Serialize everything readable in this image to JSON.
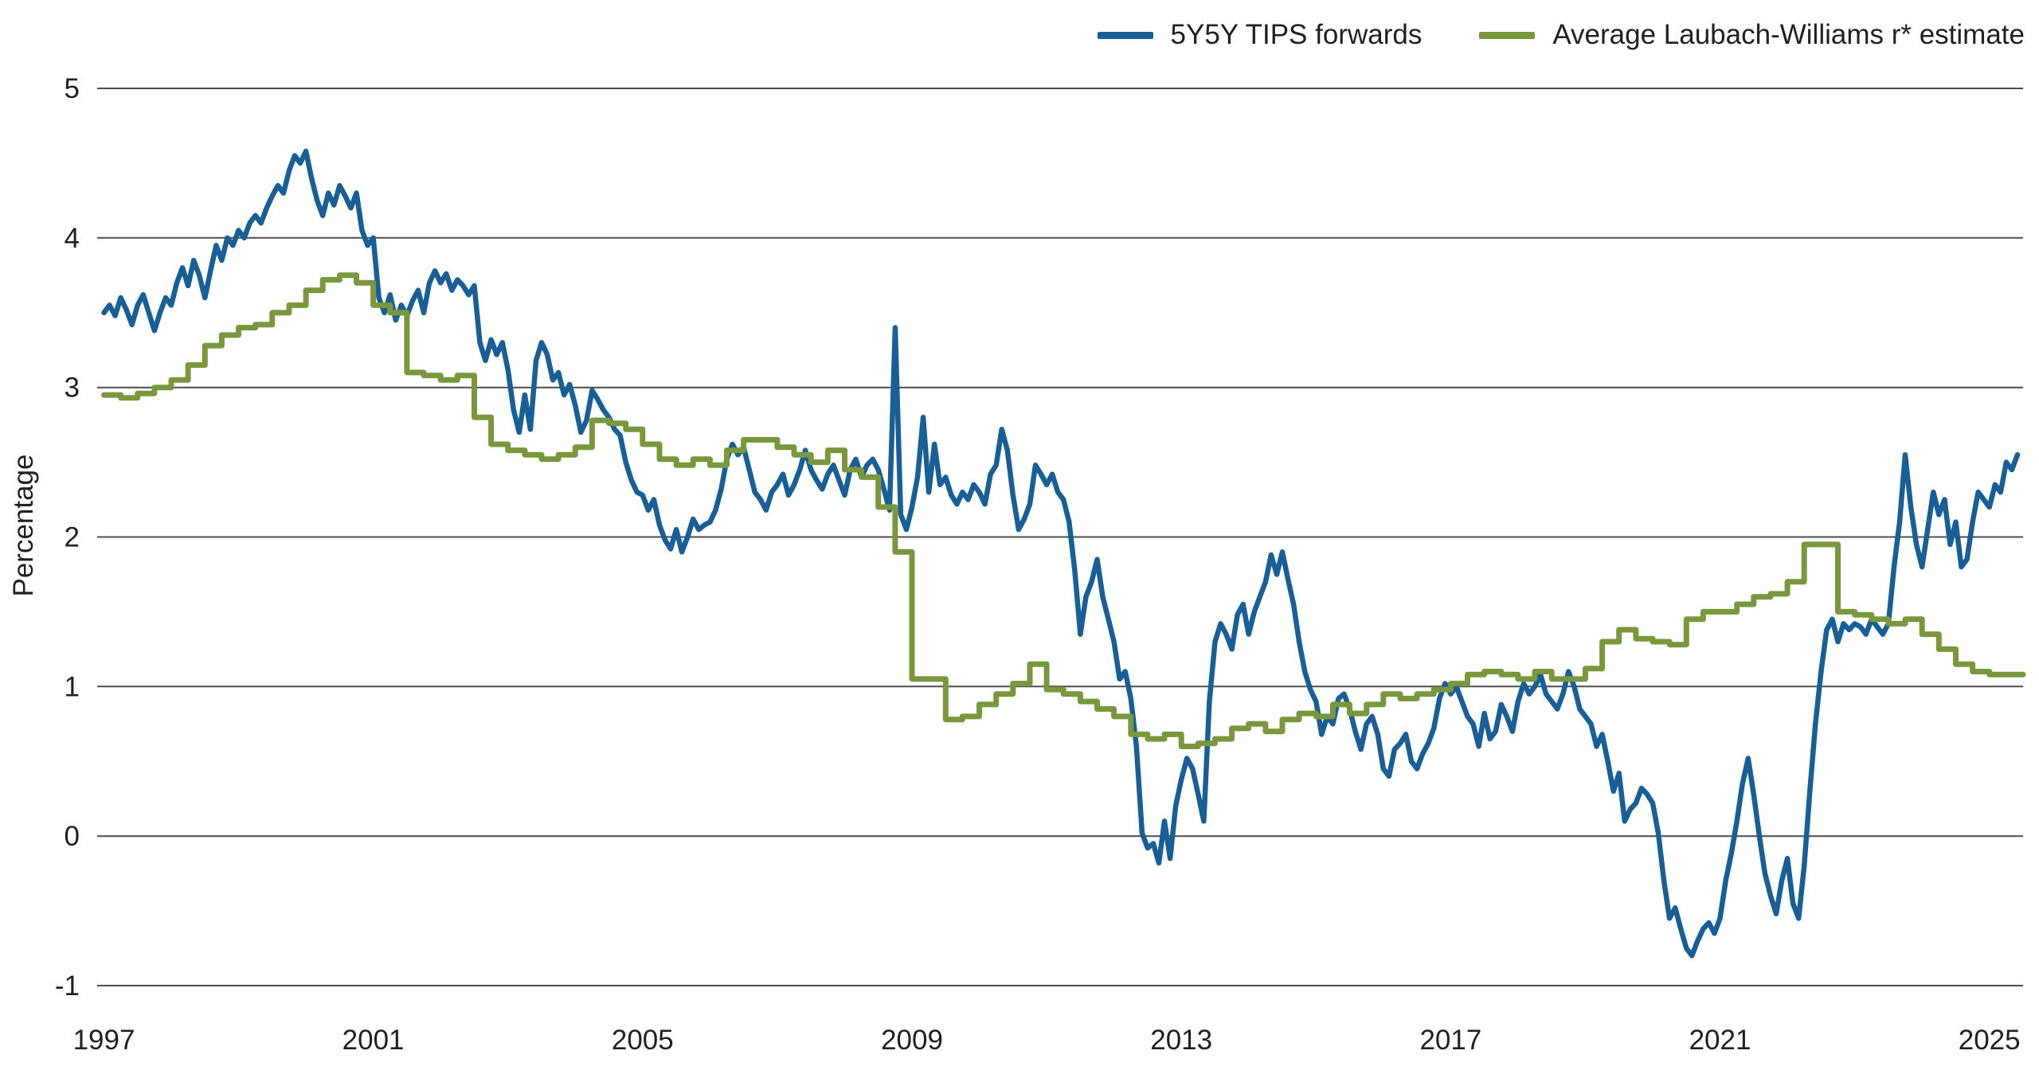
{
  "axis": {
    "y_label": "Percentage"
  },
  "chart_data": {
    "type": "line",
    "title": "",
    "xlabel": "",
    "ylabel": "Percentage",
    "ylim": [
      -1,
      5
    ],
    "x_range": [
      1996.9,
      2025.5
    ],
    "y_ticks": [
      5,
      4,
      3,
      2,
      1,
      0,
      -1
    ],
    "x_ticks": [
      1997,
      2001,
      2005,
      2009,
      2013,
      2017,
      2021,
      2025
    ],
    "grid": "horizontal",
    "legend_position": "top-right",
    "series": [
      {
        "name": "5Y5Y TIPS forwards",
        "color": "#1a5e96",
        "line_style": "linear",
        "stroke_width": 6.5,
        "start": 1997.0,
        "step": 0.0833333,
        "values": [
          3.5,
          3.55,
          3.48,
          3.6,
          3.52,
          3.42,
          3.55,
          3.62,
          3.5,
          3.38,
          3.5,
          3.6,
          3.55,
          3.7,
          3.8,
          3.68,
          3.85,
          3.75,
          3.6,
          3.78,
          3.95,
          3.85,
          4.0,
          3.95,
          4.05,
          4.0,
          4.1,
          4.15,
          4.1,
          4.2,
          4.28,
          4.35,
          4.3,
          4.45,
          4.55,
          4.5,
          4.58,
          4.4,
          4.25,
          4.15,
          4.3,
          4.22,
          4.35,
          4.28,
          4.2,
          4.3,
          4.05,
          3.95,
          4.0,
          3.6,
          3.5,
          3.62,
          3.45,
          3.55,
          3.48,
          3.58,
          3.65,
          3.5,
          3.7,
          3.78,
          3.7,
          3.76,
          3.65,
          3.72,
          3.68,
          3.62,
          3.68,
          3.3,
          3.18,
          3.32,
          3.22,
          3.3,
          3.12,
          2.85,
          2.7,
          2.95,
          2.72,
          3.18,
          3.3,
          3.22,
          3.05,
          3.1,
          2.95,
          3.02,
          2.88,
          2.7,
          2.78,
          2.98,
          2.92,
          2.85,
          2.8,
          2.72,
          2.68,
          2.5,
          2.38,
          2.3,
          2.28,
          2.18,
          2.25,
          2.08,
          1.98,
          1.92,
          2.05,
          1.9,
          2.0,
          2.12,
          2.05,
          2.08,
          2.1,
          2.18,
          2.32,
          2.52,
          2.62,
          2.55,
          2.6,
          2.45,
          2.3,
          2.25,
          2.18,
          2.3,
          2.35,
          2.42,
          2.28,
          2.35,
          2.45,
          2.58,
          2.45,
          2.38,
          2.32,
          2.42,
          2.48,
          2.38,
          2.28,
          2.45,
          2.52,
          2.4,
          2.48,
          2.52,
          2.45,
          2.32,
          2.18,
          3.4,
          2.15,
          2.05,
          2.2,
          2.4,
          2.8,
          2.3,
          2.62,
          2.35,
          2.4,
          2.28,
          2.22,
          2.3,
          2.25,
          2.35,
          2.3,
          2.22,
          2.42,
          2.48,
          2.72,
          2.58,
          2.28,
          2.05,
          2.12,
          2.22,
          2.48,
          2.42,
          2.35,
          2.42,
          2.3,
          2.25,
          2.1,
          1.78,
          1.35,
          1.6,
          1.7,
          1.85,
          1.6,
          1.45,
          1.3,
          1.05,
          1.1,
          0.92,
          0.6,
          0.02,
          -0.08,
          -0.05,
          -0.18,
          0.1,
          -0.15,
          0.2,
          0.38,
          0.52,
          0.45,
          0.28,
          0.1,
          0.9,
          1.3,
          1.42,
          1.35,
          1.25,
          1.48,
          1.55,
          1.35,
          1.5,
          1.6,
          1.7,
          1.88,
          1.75,
          1.9,
          1.72,
          1.55,
          1.3,
          1.1,
          0.98,
          0.9,
          0.68,
          0.8,
          0.75,
          0.92,
          0.95,
          0.85,
          0.7,
          0.58,
          0.75,
          0.8,
          0.68,
          0.45,
          0.4,
          0.58,
          0.62,
          0.68,
          0.5,
          0.45,
          0.55,
          0.62,
          0.72,
          0.92,
          1.02,
          0.95,
          1.0,
          0.9,
          0.8,
          0.75,
          0.6,
          0.82,
          0.65,
          0.7,
          0.88,
          0.8,
          0.7,
          0.9,
          1.02,
          0.95,
          1.0,
          1.08,
          0.95,
          0.9,
          0.85,
          0.95,
          1.1,
          1.0,
          0.85,
          0.8,
          0.75,
          0.6,
          0.68,
          0.5,
          0.3,
          0.42,
          0.1,
          0.18,
          0.22,
          0.32,
          0.28,
          0.22,
          0.02,
          -0.3,
          -0.55,
          -0.48,
          -0.62,
          -0.75,
          -0.8,
          -0.7,
          -0.62,
          -0.58,
          -0.65,
          -0.55,
          -0.3,
          -0.12,
          0.1,
          0.35,
          0.52,
          0.28,
          0.0,
          -0.25,
          -0.4,
          -0.52,
          -0.3,
          -0.15,
          -0.45,
          -0.55,
          -0.2,
          0.3,
          0.75,
          1.1,
          1.38,
          1.45,
          1.3,
          1.42,
          1.38,
          1.42,
          1.4,
          1.35,
          1.45,
          1.4,
          1.35,
          1.42,
          1.8,
          2.1,
          2.55,
          2.2,
          1.95,
          1.8,
          2.05,
          2.3,
          2.15,
          2.25,
          1.95,
          2.1,
          1.8,
          1.85,
          2.1,
          2.3,
          2.25,
          2.2,
          2.35,
          2.3,
          2.5,
          2.45,
          2.55
        ]
      },
      {
        "name": "Average Laubach-Williams r* estimate",
        "color": "#7b973e",
        "line_style": "step",
        "stroke_width": 7,
        "start": 1997.0,
        "step": 0.25,
        "values": [
          2.95,
          2.93,
          2.96,
          3.0,
          3.05,
          3.15,
          3.28,
          3.35,
          3.4,
          3.42,
          3.5,
          3.55,
          3.65,
          3.72,
          3.75,
          3.7,
          3.55,
          3.5,
          3.1,
          3.08,
          3.05,
          3.08,
          2.8,
          2.62,
          2.58,
          2.55,
          2.52,
          2.55,
          2.6,
          2.78,
          2.76,
          2.72,
          2.62,
          2.52,
          2.48,
          2.52,
          2.48,
          2.58,
          2.65,
          2.65,
          2.6,
          2.55,
          2.5,
          2.58,
          2.45,
          2.4,
          2.2,
          1.9,
          1.05,
          1.05,
          0.78,
          0.8,
          0.88,
          0.95,
          1.02,
          1.15,
          0.98,
          0.95,
          0.9,
          0.85,
          0.8,
          0.68,
          0.65,
          0.68,
          0.6,
          0.62,
          0.65,
          0.72,
          0.75,
          0.7,
          0.78,
          0.82,
          0.8,
          0.88,
          0.82,
          0.88,
          0.95,
          0.92,
          0.95,
          0.98,
          1.02,
          1.08,
          1.1,
          1.08,
          1.05,
          1.1,
          1.05,
          1.05,
          1.12,
          1.3,
          1.38,
          1.32,
          1.3,
          1.28,
          1.45,
          1.5,
          1.5,
          1.55,
          1.6,
          1.62,
          1.7,
          1.95,
          1.95,
          1.5,
          1.48,
          1.45,
          1.42,
          1.45,
          1.35,
          1.25,
          1.15,
          1.1,
          1.08,
          1.08
        ]
      }
    ]
  }
}
